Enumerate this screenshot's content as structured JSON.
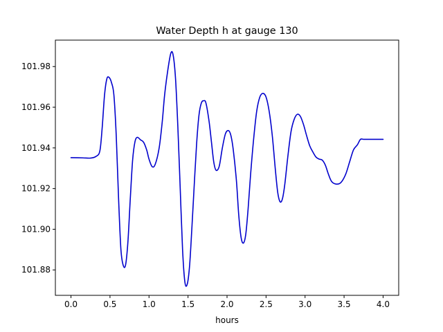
{
  "chart_data": {
    "type": "line",
    "title": "Water Depth h at gauge 130",
    "xlabel": "hours",
    "ylabel": "",
    "xlim": [
      -0.2,
      4.2
    ],
    "ylim": [
      101.8675,
      101.993
    ],
    "grid": false,
    "x_ticks": [
      0.0,
      0.5,
      1.0,
      1.5,
      2.0,
      2.5,
      3.0,
      3.5,
      4.0
    ],
    "x_tick_labels": [
      "0.0",
      "0.5",
      "1.0",
      "1.5",
      "2.0",
      "2.5",
      "3.0",
      "3.5",
      "4.0"
    ],
    "y_ticks": [
      101.88,
      101.9,
      101.92,
      101.94,
      101.96,
      101.98
    ],
    "y_tick_labels": [
      "101.88",
      "101.90",
      "101.92",
      "101.94",
      "101.96",
      "101.98"
    ],
    "series": [
      {
        "color": "#0000cc",
        "x": [
          0.0,
          0.15,
          0.25,
          0.32,
          0.37,
          0.4,
          0.43,
          0.46,
          0.49,
          0.52,
          0.55,
          0.58,
          0.61,
          0.64,
          0.67,
          0.7,
          0.73,
          0.76,
          0.79,
          0.82,
          0.85,
          0.89,
          0.93,
          0.97,
          1.0,
          1.04,
          1.08,
          1.13,
          1.17,
          1.2,
          1.24,
          1.28,
          1.31,
          1.34,
          1.37,
          1.4,
          1.43,
          1.46,
          1.49,
          1.52,
          1.55,
          1.58,
          1.61,
          1.64,
          1.67,
          1.7,
          1.73,
          1.77,
          1.8,
          1.83,
          1.86,
          1.9,
          1.94,
          1.98,
          2.02,
          2.05,
          2.08,
          2.12,
          2.15,
          2.18,
          2.21,
          2.24,
          2.27,
          2.3,
          2.34,
          2.38,
          2.42,
          2.46,
          2.5,
          2.54,
          2.58,
          2.62,
          2.65,
          2.68,
          2.71,
          2.74,
          2.78,
          2.82,
          2.86,
          2.9,
          2.94,
          2.98,
          3.02,
          3.06,
          3.1,
          3.14,
          3.18,
          3.22,
          3.26,
          3.3,
          3.34,
          3.4,
          3.46,
          3.52,
          3.57,
          3.62,
          3.67,
          3.71,
          3.75,
          3.8,
          3.85,
          3.9,
          3.95,
          4.0
        ],
        "y": [
          101.9352,
          101.9351,
          101.935,
          101.9358,
          101.9385,
          101.95,
          101.966,
          101.974,
          101.9746,
          101.972,
          101.966,
          101.946,
          101.915,
          101.89,
          101.8822,
          101.8825,
          101.894,
          101.915,
          101.934,
          101.943,
          101.9452,
          101.944,
          101.9428,
          101.939,
          101.9345,
          101.9308,
          101.932,
          101.94,
          101.953,
          101.966,
          101.978,
          101.9866,
          101.9855,
          101.974,
          101.95,
          101.92,
          101.89,
          101.874,
          101.873,
          101.882,
          101.901,
          101.922,
          101.942,
          101.956,
          101.962,
          101.9632,
          101.962,
          101.953,
          101.943,
          101.933,
          101.929,
          101.931,
          101.94,
          101.947,
          101.9485,
          101.946,
          101.939,
          101.924,
          101.907,
          101.896,
          101.8932,
          101.8975,
          101.91,
          101.926,
          101.944,
          101.958,
          101.965,
          101.9668,
          101.965,
          101.958,
          101.946,
          101.929,
          101.918,
          101.9135,
          101.915,
          101.922,
          101.936,
          101.948,
          101.954,
          101.9565,
          101.9555,
          101.9515,
          101.946,
          101.941,
          101.938,
          101.9355,
          101.9345,
          101.934,
          101.9315,
          101.927,
          101.9235,
          101.9222,
          101.923,
          101.927,
          101.933,
          101.939,
          101.9415,
          101.9442,
          101.9442,
          101.9442,
          101.9442,
          101.9442,
          101.9442,
          101.9442
        ]
      }
    ]
  }
}
